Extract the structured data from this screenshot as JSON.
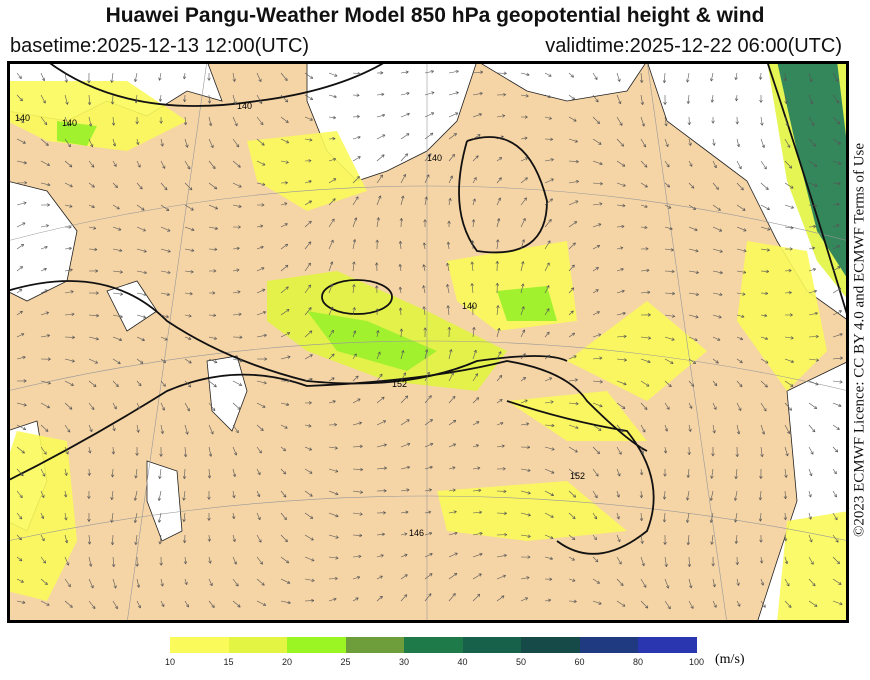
{
  "header": {
    "title": "Huawei Pangu-Weather Model 850 hPa geopotential height & wind",
    "basetime": "basetime:2025-12-13 12:00(UTC)",
    "validtime": "validtime:2025-12-22 06:00(UTC)"
  },
  "map": {
    "contour_labels": [
      "140",
      "140",
      "152",
      "140",
      "140",
      "140",
      "152",
      "146"
    ],
    "colors": {
      "land": "#f5d4a6",
      "sea": "#ffffff",
      "wind_10_15": "#fafa5a",
      "wind_15_20": "#e3f542",
      "wind_20_25": "#9af523",
      "wind_25_30": "#6e9e3c",
      "wind_30_40": "#1f7a4a"
    }
  },
  "credit": "©2023 ECMWF Licence: CC BY 4.0 and ECMWF Terms of Use",
  "colorbar": {
    "ticks": [
      "10",
      "15",
      "20",
      "25",
      "30",
      "40",
      "50",
      "60",
      "80",
      "100"
    ],
    "colors": [
      "#fafa5a",
      "#e3f542",
      "#9af523",
      "#6e9e3c",
      "#1f7a4a",
      "#17604a",
      "#164a48",
      "#1f3a80",
      "#2a35b0"
    ],
    "unit": "(m/s)"
  }
}
